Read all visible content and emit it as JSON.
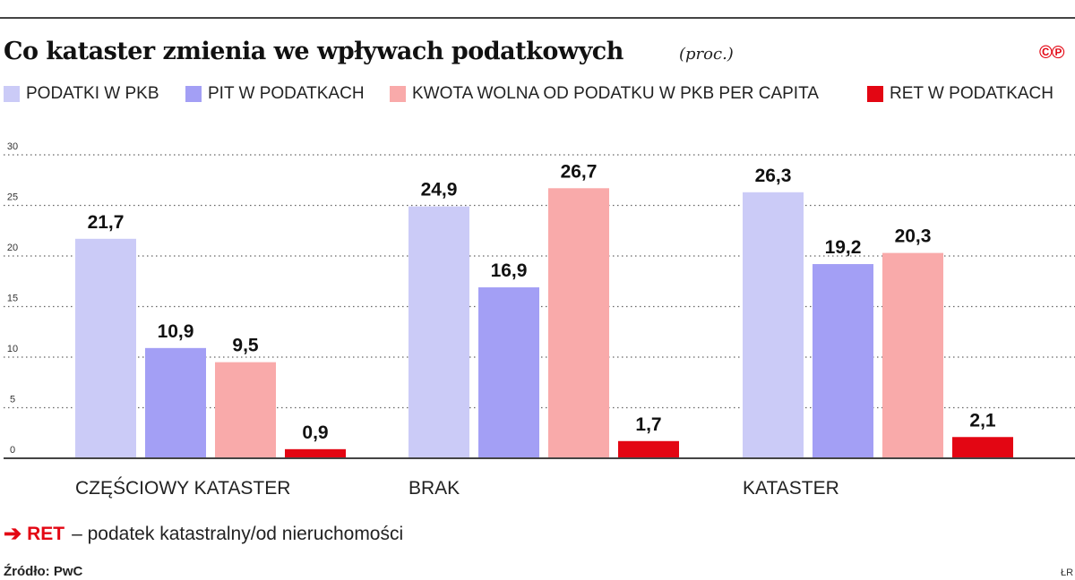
{
  "title": "Co kataster zmienia we wpływach podatkowych",
  "unit": "(proc.)",
  "logo": "©℗",
  "colors": {
    "series1": "#cbcbf7",
    "series2": "#a39ff5",
    "series3": "#f9aaaa",
    "series4": "#e30613",
    "accent": "#e30613"
  },
  "chart_data": {
    "type": "bar",
    "categories": [
      "CZĘŚCIOWY KATASTER",
      "BRAK",
      "KATASTER"
    ],
    "series": [
      {
        "name": "PODATKI W PKB",
        "values": [
          21.7,
          24.9,
          26.3
        ],
        "labels": [
          "21,7",
          "24,9",
          "26,3"
        ]
      },
      {
        "name": "PIT W PODATKACH",
        "values": [
          10.9,
          16.9,
          19.2
        ],
        "labels": [
          "10,9",
          "16,9",
          "19,2"
        ]
      },
      {
        "name": "KWOTA WOLNA OD PODATKU W PKB PER CAPITA",
        "values": [
          9.5,
          26.7,
          20.3
        ],
        "labels": [
          "9,5",
          "26,7",
          "20,3"
        ]
      },
      {
        "name": "RET W PODATKACH",
        "values": [
          0.9,
          1.7,
          2.1
        ],
        "labels": [
          "0,9",
          "1,7",
          "2,1"
        ]
      }
    ],
    "yticks": [
      "0",
      "5",
      "10",
      "15",
      "20",
      "25",
      "30"
    ],
    "ylim": [
      0,
      30
    ],
    "grid": true,
    "legend": "top"
  },
  "note": {
    "arrow": "➔",
    "key": "RET",
    "text": "– podatek katastralny/od nieruchomości"
  },
  "source": "Źródło: PwC",
  "initials": "ŁR"
}
